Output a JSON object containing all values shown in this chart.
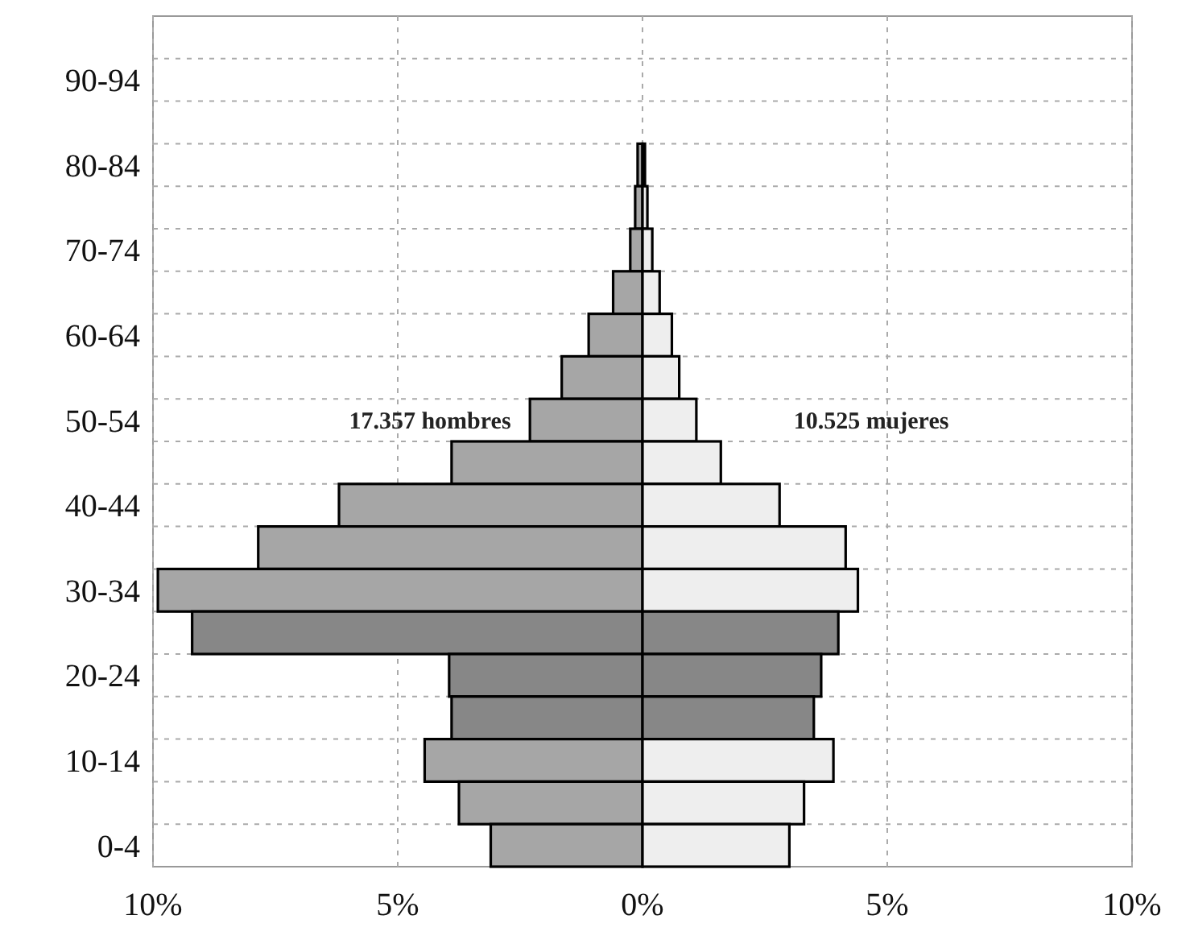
{
  "chart_data": {
    "type": "bar",
    "orientation": "horizontal",
    "stacked": true,
    "categories": [
      null,
      "90-94",
      null,
      "80-84",
      null,
      "70-74",
      null,
      "60-64",
      null,
      "50-54",
      null,
      "40-44",
      null,
      "30-34",
      null,
      "20-24",
      null,
      "10-14",
      null,
      "0-4"
    ],
    "series": [
      {
        "name": "17.357 hombres",
        "colors": [
          null,
          null,
          null,
          "#a6a6a6",
          "#a6a6a6",
          "#a6a6a6",
          "#a6a6a6",
          "#a6a6a6",
          "#a6a6a6",
          "#a6a6a6",
          "#a6a6a6",
          "#a6a6a6",
          "#a6a6a6",
          "#a6a6a6",
          "#878787",
          "#878787",
          "#878787",
          "#a6a6a6",
          "#a6a6a6",
          "#a6a6a6"
        ],
        "values": [
          null,
          null,
          null,
          -0.1,
          -0.15,
          -0.25,
          -0.6,
          -1.1,
          -1.65,
          -2.3,
          -3.9,
          -6.2,
          -7.85,
          -9.9,
          -9.2,
          -3.95,
          -3.9,
          -4.45,
          -3.75,
          -3.1
        ]
      },
      {
        "name": "10.525 mujeres",
        "colors": [
          null,
          null,
          null,
          "#eeeeee",
          "#eeeeee",
          "#eeeeee",
          "#eeeeee",
          "#eeeeee",
          "#eeeeee",
          "#eeeeee",
          "#eeeeee",
          "#eeeeee",
          "#eeeeee",
          "#eeeeee",
          "#878787",
          "#878787",
          "#878787",
          "#eeeeee",
          "#eeeeee",
          "#eeeeee"
        ],
        "values": [
          null,
          null,
          null,
          0.05,
          0.1,
          0.2,
          0.35,
          0.6,
          0.75,
          1.1,
          1.6,
          2.8,
          4.15,
          4.4,
          4.0,
          3.65,
          3.5,
          3.9,
          3.3,
          3.0
        ]
      }
    ],
    "xlim": [
      -10,
      10
    ],
    "xticks": [
      {
        "value": -10,
        "label": "10%"
      },
      {
        "value": -5,
        "label": "5%"
      },
      {
        "value": 0,
        "label": "0%"
      },
      {
        "value": 5,
        "label": "5%"
      },
      {
        "value": 10,
        "label": "10%"
      }
    ],
    "grid": true
  }
}
